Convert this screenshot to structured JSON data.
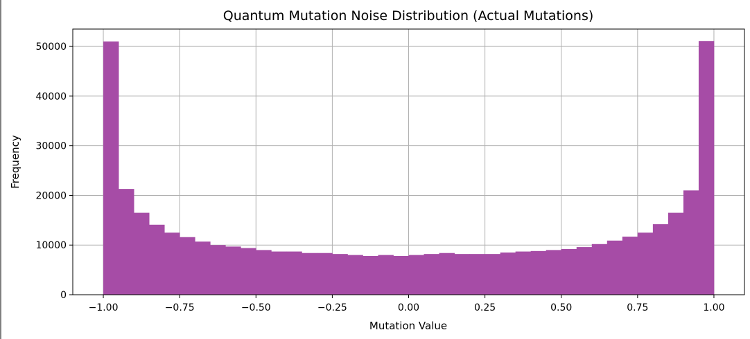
{
  "chart_data": {
    "type": "bar",
    "title": "Quantum Mutation Noise Distribution (Actual Mutations)",
    "xlabel": "Mutation Value",
    "ylabel": "Frequency",
    "xlim": [
      -1.1,
      1.1
    ],
    "ylim": [
      0,
      53500
    ],
    "grid": true,
    "bar_color": "#a64ca6",
    "bin_edges": [
      -1.0,
      -0.95,
      -0.9,
      -0.85,
      -0.8,
      -0.75,
      -0.7,
      -0.65,
      -0.6,
      -0.55,
      -0.5,
      -0.45,
      -0.4,
      -0.35,
      -0.3,
      -0.25,
      -0.2,
      -0.15,
      -0.1,
      -0.05,
      0.0,
      0.05,
      0.1,
      0.15,
      0.2,
      0.25,
      0.3,
      0.35,
      0.4,
      0.45,
      0.5,
      0.55,
      0.6,
      0.65,
      0.7,
      0.75,
      0.8,
      0.85,
      0.9,
      0.95,
      1.0
    ],
    "values": [
      51000,
      21300,
      16500,
      14100,
      12500,
      11600,
      10700,
      10000,
      9700,
      9400,
      9000,
      8700,
      8700,
      8400,
      8400,
      8200,
      8000,
      7800,
      8000,
      7800,
      8000,
      8200,
      8400,
      8200,
      8200,
      8200,
      8500,
      8700,
      8800,
      9000,
      9200,
      9600,
      10200,
      10900,
      11700,
      12500,
      14200,
      16500,
      21000,
      51100
    ],
    "x_ticks": [
      -1.0,
      -0.75,
      -0.5,
      -0.25,
      0.0,
      0.25,
      0.5,
      0.75,
      1.0
    ],
    "x_tick_labels": [
      "−1.00",
      "−0.75",
      "−0.50",
      "−0.25",
      "0.00",
      "0.25",
      "0.50",
      "0.75",
      "1.00"
    ],
    "y_ticks": [
      0,
      10000,
      20000,
      30000,
      40000,
      50000
    ],
    "y_tick_labels": [
      "0",
      "10000",
      "20000",
      "30000",
      "40000",
      "50000"
    ]
  }
}
